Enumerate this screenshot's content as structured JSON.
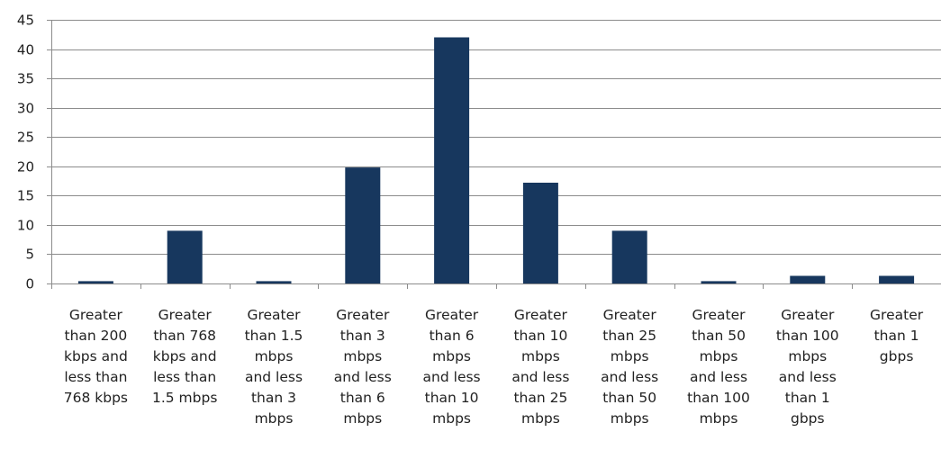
{
  "chart_data": {
    "type": "bar",
    "title": "",
    "xlabel": "",
    "ylabel": "",
    "ylim": [
      0,
      45
    ],
    "yticks": [
      "0",
      "5",
      "10",
      "15",
      "20",
      "25",
      "30",
      "35",
      "40",
      "45"
    ],
    "grid": true,
    "legend": "none",
    "bar_color": "#17375e",
    "categories": [
      [
        "Greater",
        "than 200",
        "kbps and",
        "less than",
        "768 kbps"
      ],
      [
        "Greater",
        "than 768",
        "kbps and",
        "less than",
        "1.5 mbps"
      ],
      [
        "Greater",
        "than 1.5",
        "mbps",
        "and less",
        "than 3",
        "mbps"
      ],
      [
        "Greater",
        "than 3",
        "mbps",
        "and less",
        "than 6",
        "mbps"
      ],
      [
        "Greater",
        "than 6",
        "mbps",
        "and less",
        "than 10",
        "mbps"
      ],
      [
        "Greater",
        "than 10",
        "mbps",
        "and less",
        "than 25",
        "mbps"
      ],
      [
        "Greater",
        "than 25",
        "mbps",
        "and less",
        "than 50",
        "mbps"
      ],
      [
        "Greater",
        "than 50",
        "mbps",
        "and less",
        "than 100",
        "mbps"
      ],
      [
        "Greater",
        "than 100",
        "mbps",
        "and less",
        "than 1",
        "gbps"
      ],
      [
        "Greater",
        "than 1",
        "gbps"
      ]
    ],
    "values": [
      0.4,
      9,
      0.4,
      19.8,
      42,
      17.2,
      9,
      0.4,
      1.3,
      1.3
    ]
  }
}
